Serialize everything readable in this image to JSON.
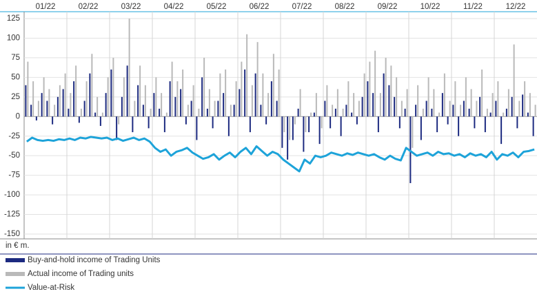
{
  "chart_data": {
    "type": "bar_line",
    "categories": [
      "01/22",
      "02/22",
      "03/22",
      "04/22",
      "05/22",
      "06/22",
      "07/22",
      "08/22",
      "09/22",
      "10/22",
      "11/22",
      "12/22"
    ],
    "unit_label": "in € m.",
    "ylim": [
      -150,
      125
    ],
    "yticks": [
      125,
      100,
      75,
      50,
      25,
      0,
      -25,
      -50,
      -75,
      -100,
      -125,
      -150
    ],
    "grid": true,
    "series": [
      {
        "name": "Buy-and-hold income of Trading Units",
        "color": "#1c2a80",
        "kind": "bar",
        "values": [
          [
            40,
            15,
            -5,
            30,
            20,
            -10,
            25,
            35
          ],
          [
            10,
            45,
            -8,
            20,
            55,
            5,
            -12,
            30
          ],
          [
            60,
            -30,
            25,
            65,
            -20,
            40,
            15,
            -15
          ],
          [
            30,
            10,
            -20,
            45,
            25,
            35,
            -10,
            20
          ],
          [
            -30,
            50,
            10,
            -15,
            20,
            30,
            -25,
            15
          ],
          [
            35,
            60,
            -20,
            55,
            15,
            -10,
            45,
            20
          ],
          [
            -40,
            -55,
            -30,
            10,
            -45,
            -20,
            5,
            -35
          ],
          [
            20,
            -15,
            10,
            -25,
            15,
            5,
            -10,
            25
          ],
          [
            45,
            30,
            -20,
            55,
            40,
            25,
            -15,
            10
          ],
          [
            -85,
            15,
            -30,
            20,
            10,
            -20,
            30,
            -10
          ],
          [
            15,
            -25,
            20,
            10,
            -15,
            25,
            -20,
            5
          ],
          [
            20,
            -35,
            10,
            25,
            -15,
            28,
            5,
            -25
          ]
        ]
      },
      {
        "name": "Actual income of Trading units",
        "color": "#b9b9b9",
        "kind": "bar",
        "values": [
          [
            70,
            45,
            20,
            50,
            35,
            15,
            40,
            55
          ],
          [
            30,
            65,
            10,
            45,
            80,
            25,
            5,
            50
          ],
          [
            75,
            -10,
            50,
            125,
            20,
            65,
            40,
            10
          ],
          [
            50,
            30,
            5,
            70,
            45,
            60,
            15,
            40
          ],
          [
            10,
            75,
            35,
            20,
            55,
            60,
            15,
            45
          ],
          [
            70,
            105,
            40,
            95,
            55,
            30,
            80,
            60
          ],
          [
            -20,
            -30,
            -10,
            35,
            -20,
            5,
            30,
            -15
          ],
          [
            40,
            15,
            35,
            10,
            45,
            30,
            20,
            55
          ],
          [
            70,
            84,
            30,
            75,
            65,
            50,
            20,
            35
          ],
          [
            -40,
            40,
            10,
            50,
            35,
            5,
            55,
            20
          ],
          [
            45,
            15,
            50,
            35,
            20,
            60,
            10,
            30
          ],
          [
            45,
            5,
            35,
            92,
            20,
            45,
            30,
            15
          ]
        ]
      },
      {
        "name": "Value-at-Risk",
        "color": "#1da3d9",
        "kind": "line",
        "values": [
          [
            -32,
            -27,
            -30,
            -31,
            -30,
            -31,
            -29,
            -30
          ],
          [
            -28,
            -30,
            -27,
            -28,
            -26,
            -27,
            -28,
            -27
          ],
          [
            -30,
            -28,
            -31,
            -29,
            -27,
            -30,
            -28,
            -32
          ],
          [
            -40,
            -45,
            -42,
            -50,
            -45,
            -43,
            -40,
            -46
          ],
          [
            -50,
            -54,
            -52,
            -48,
            -55,
            -50,
            -46,
            -52
          ],
          [
            -45,
            -40,
            -48,
            -38,
            -44,
            -50,
            -45,
            -48
          ],
          [
            -55,
            -60,
            -65,
            -70,
            -55,
            -60,
            -50,
            -52
          ],
          [
            -50,
            -46,
            -48,
            -50,
            -47,
            -49,
            -46,
            -48
          ],
          [
            -50,
            -48,
            -52,
            -55,
            -50,
            -54,
            -56,
            -40
          ],
          [
            -45,
            -50,
            -48,
            -46,
            -50,
            -45,
            -48,
            -47
          ],
          [
            -50,
            -48,
            -52,
            -47,
            -50,
            -48,
            -52,
            -45
          ],
          [
            -55,
            -48,
            -50,
            -46,
            -52,
            -45,
            -44,
            -42
          ]
        ]
      }
    ]
  }
}
